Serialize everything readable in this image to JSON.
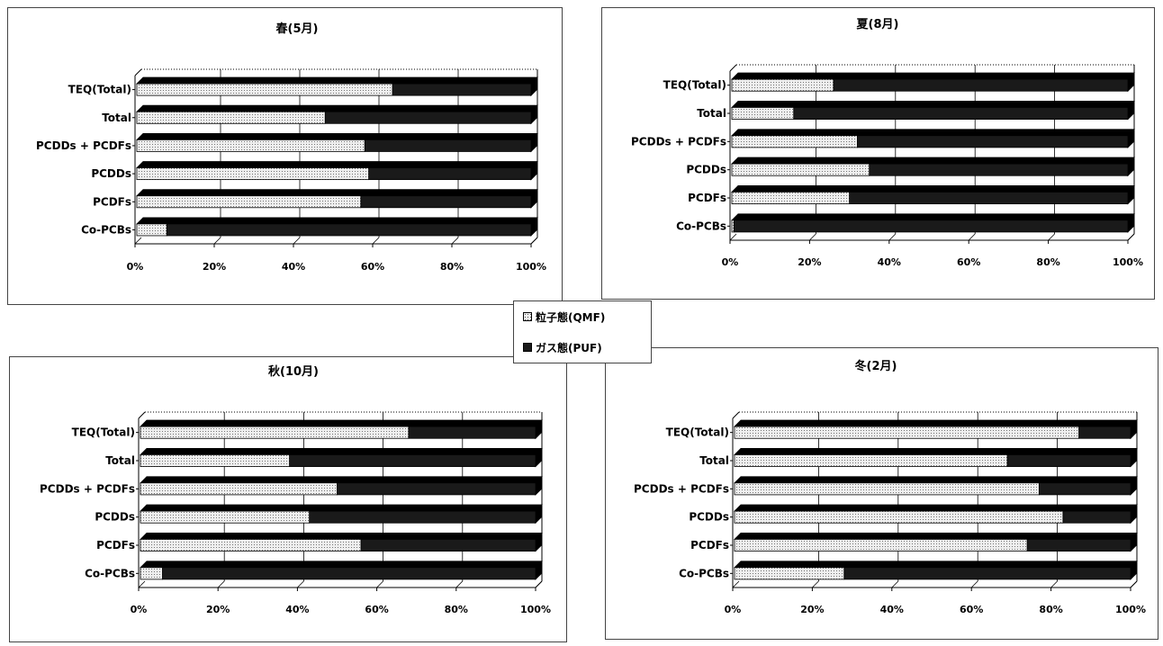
{
  "legend": {
    "particle_label": "粒子態(QMF)",
    "gas_label": "ガス態(PUF)"
  },
  "colors": {
    "particle": "#efefef",
    "gas": "#1a1a1a",
    "axis": "#000000",
    "grid": "#000000"
  },
  "chart_data": [
    {
      "type": "bar",
      "stacked": "percent",
      "orientation": "horizontal",
      "title": "春(5月)",
      "categories": [
        "TEQ(Total)",
        "Total",
        "PCDDs + PCDFs",
        "PCDDs",
        "PCDFs",
        "Co-PCBs"
      ],
      "series": [
        {
          "name": "粒子態(QMF)",
          "values": [
            65,
            48,
            58,
            59,
            57,
            8
          ]
        },
        {
          "name": "ガス態(PUF)",
          "values": [
            35,
            52,
            42,
            41,
            43,
            92
          ]
        }
      ],
      "xlim": [
        0,
        100
      ],
      "xticks": [
        "0%",
        "20%",
        "40%",
        "60%",
        "80%",
        "100%"
      ],
      "grid": true
    },
    {
      "type": "bar",
      "stacked": "percent",
      "orientation": "horizontal",
      "title": "夏(8月)",
      "categories": [
        "TEQ(Total)",
        "Total",
        "PCDDs + PCDFs",
        "PCDDs",
        "PCDFs",
        "Co-PCBs"
      ],
      "series": [
        {
          "name": "粒子態(QMF)",
          "values": [
            26,
            16,
            32,
            35,
            30,
            1
          ]
        },
        {
          "name": "ガス態(PUF)",
          "values": [
            74,
            84,
            68,
            65,
            70,
            99
          ]
        }
      ],
      "xlim": [
        0,
        100
      ],
      "xticks": [
        "0%",
        "20%",
        "40%",
        "60%",
        "80%",
        "100%"
      ],
      "grid": true
    },
    {
      "type": "bar",
      "stacked": "percent",
      "orientation": "horizontal",
      "title": "秋(10月)",
      "categories": [
        "TEQ(Total)",
        "Total",
        "PCDDs + PCDFs",
        "PCDDs",
        "PCDFs",
        "Co-PCBs"
      ],
      "series": [
        {
          "name": "粒子態(QMF)",
          "values": [
            68,
            38,
            50,
            43,
            56,
            6
          ]
        },
        {
          "name": "ガス態(PUF)",
          "values": [
            32,
            62,
            50,
            57,
            44,
            94
          ]
        }
      ],
      "xlim": [
        0,
        100
      ],
      "xticks": [
        "0%",
        "20%",
        "40%",
        "60%",
        "80%",
        "100%"
      ],
      "grid": true
    },
    {
      "type": "bar",
      "stacked": "percent",
      "orientation": "horizontal",
      "title": "冬(2月)",
      "categories": [
        "TEQ(Total)",
        "Total",
        "PCDDs + PCDFs",
        "PCDDs",
        "PCDFs",
        "Co-PCBs"
      ],
      "series": [
        {
          "name": "粒子態(QMF)",
          "values": [
            87,
            69,
            77,
            83,
            74,
            28
          ]
        },
        {
          "name": "ガス態(PUF)",
          "values": [
            13,
            31,
            23,
            17,
            26,
            72
          ]
        }
      ],
      "xlim": [
        0,
        100
      ],
      "xticks": [
        "0%",
        "20%",
        "40%",
        "60%",
        "80%",
        "100%"
      ],
      "grid": true
    }
  ]
}
